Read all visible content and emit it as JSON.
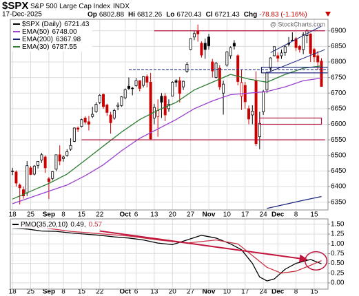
{
  "header": {
    "symbol": "$SPX",
    "name": "S&P 500 Large Cap Index",
    "exchange": "INDX",
    "date": "17-Dec-2025",
    "open_label": "Op",
    "open": "6802.88",
    "high_label": "Hi",
    "high": "6812.26",
    "low_label": "Lo",
    "low": "6720.43",
    "close_label": "Cl",
    "close": "6721.43",
    "change_label": "Chg",
    "change": "-78.83 (-1.16%)"
  },
  "watermark": "@ StockCharts.com",
  "chart_data": [
    {
      "type": "candlestick",
      "legend_label": "$SPX (Daily)",
      "legend_value": "6721.43",
      "up_color": "#000000",
      "down_color": "#cc0000",
      "xlim": [
        -0.6,
        86.8
      ],
      "ylim": [
        6325,
        6937
      ],
      "yticks": [
        6350,
        6400,
        6450,
        6500,
        6550,
        6600,
        6650,
        6700,
        6750,
        6800,
        6850,
        6900
      ],
      "xticks": [
        {
          "value": 0,
          "label": "18"
        },
        {
          "value": 5,
          "label": "25"
        },
        {
          "value": 10,
          "label": "Sep"
        },
        {
          "value": 14,
          "label": "8"
        },
        {
          "value": 19,
          "label": "15"
        },
        {
          "value": 24,
          "label": "22"
        },
        {
          "value": 31,
          "label": "Oct"
        },
        {
          "value": 34,
          "label": "6"
        },
        {
          "value": 39,
          "label": "13"
        },
        {
          "value": 44,
          "label": "20"
        },
        {
          "value": 49,
          "label": "27"
        },
        {
          "value": 54,
          "label": "Nov"
        },
        {
          "value": 59,
          "label": "10"
        },
        {
          "value": 64,
          "label": "17"
        },
        {
          "value": 69,
          "label": "24"
        },
        {
          "value": 73,
          "label": "Dec"
        },
        {
          "value": 78,
          "label": "8"
        },
        {
          "value": 83,
          "label": "15"
        }
      ],
      "grid": true,
      "ohlc": [
        [
          6450,
          6460,
          6437,
          6449
        ],
        [
          6447,
          6452,
          6400,
          6411
        ],
        [
          6405,
          6410,
          6343,
          6396
        ],
        [
          6390,
          6400,
          6361,
          6370
        ],
        [
          6380,
          6482,
          6370,
          6467
        ],
        [
          6460,
          6466,
          6437,
          6439
        ],
        [
          6440,
          6469,
          6436,
          6466
        ],
        [
          6468,
          6481,
          6458,
          6481
        ],
        [
          6485,
          6508,
          6476,
          6502
        ],
        [
          6495,
          6500,
          6444,
          6460
        ],
        [
          6425,
          6431,
          6360,
          6416
        ],
        [
          6426,
          6450,
          6420,
          6448
        ],
        [
          6456,
          6502,
          6450,
          6502
        ],
        [
          6502,
          6532,
          6468,
          6482
        ],
        [
          6490,
          6500,
          6480,
          6495
        ],
        [
          6500,
          6520,
          6496,
          6512
        ],
        [
          6520,
          6555,
          6515,
          6532
        ],
        [
          6545,
          6590,
          6543,
          6588
        ],
        [
          6588,
          6593,
          6575,
          6584
        ],
        [
          6593,
          6618,
          6590,
          6615
        ],
        [
          6620,
          6626,
          6600,
          6607
        ],
        [
          6608,
          6627,
          6580,
          6600
        ],
        [
          6625,
          6656,
          6620,
          6632
        ],
        [
          6640,
          6671,
          6637,
          6664
        ],
        [
          6670,
          6697,
          6665,
          6693
        ],
        [
          6696,
          6699,
          6650,
          6657
        ],
        [
          6662,
          6666,
          6627,
          6638
        ],
        [
          6630,
          6640,
          6570,
          6605
        ],
        [
          6620,
          6650,
          6615,
          6644
        ],
        [
          6658,
          6670,
          6645,
          6661
        ],
        [
          6660,
          6690,
          6656,
          6688
        ],
        [
          6685,
          6715,
          6680,
          6711
        ],
        [
          6722,
          6750,
          6710,
          6715
        ],
        [
          6715,
          6720,
          6693,
          6716
        ],
        [
          6724,
          6749,
          6720,
          6740
        ],
        [
          6740,
          6741,
          6706,
          6715
        ],
        [
          6725,
          6755,
          6718,
          6753
        ],
        [
          6753,
          6760,
          6719,
          6735
        ],
        [
          6735,
          6765,
          6550,
          6553
        ],
        [
          6620,
          6665,
          6600,
          6654
        ],
        [
          6625,
          6680,
          6560,
          6644
        ],
        [
          6690,
          6700,
          6620,
          6671
        ],
        [
          6690,
          6700,
          6610,
          6630
        ],
        [
          6650,
          6680,
          6640,
          6664
        ],
        [
          6690,
          6738,
          6690,
          6735
        ],
        [
          6740,
          6745,
          6720,
          6735
        ],
        [
          6740,
          6752,
          6670,
          6699
        ],
        [
          6720,
          6740,
          6710,
          6738
        ],
        [
          6770,
          6800,
          6765,
          6792
        ],
        [
          6840,
          6876,
          6838,
          6875
        ],
        [
          6880,
          6899,
          6870,
          6891
        ],
        [
          6900,
          6920,
          6865,
          6890
        ],
        [
          6860,
          6866,
          6814,
          6822
        ],
        [
          6860,
          6875,
          6810,
          6840
        ],
        [
          6880,
          6890,
          6840,
          6852
        ],
        [
          6800,
          6810,
          6750,
          6771
        ],
        [
          6750,
          6800,
          6747,
          6796
        ],
        [
          6780,
          6790,
          6710,
          6720
        ],
        [
          6700,
          6740,
          6631,
          6729
        ],
        [
          6790,
          6835,
          6785,
          6832
        ],
        [
          6820,
          6850,
          6810,
          6846
        ],
        [
          6860,
          6870,
          6840,
          6851
        ],
        [
          6820,
          6825,
          6725,
          6737
        ],
        [
          6690,
          6775,
          6646,
          6734
        ],
        [
          6725,
          6736,
          6650,
          6672
        ],
        [
          6650,
          6660,
          6600,
          6617
        ],
        [
          6630,
          6661,
          6600,
          6642
        ],
        [
          6740,
          6770,
          6530,
          6538
        ],
        [
          6560,
          6640,
          6520,
          6603
        ],
        [
          6640,
          6710,
          6630,
          6705
        ],
        [
          6710,
          6770,
          6700,
          6766
        ],
        [
          6780,
          6815,
          6770,
          6813
        ],
        [
          6820,
          6850,
          6818,
          6849
        ],
        [
          6820,
          6830,
          6800,
          6812
        ],
        [
          6820,
          6840,
          6810,
          6829
        ],
        [
          6830,
          6855,
          6820,
          6849
        ],
        [
          6860,
          6880,
          6850,
          6857
        ],
        [
          6870,
          6895,
          6868,
          6870
        ],
        [
          6875,
          6880,
          6835,
          6846
        ],
        [
          6850,
          6855,
          6830,
          6840
        ],
        [
          6840,
          6895,
          6825,
          6887
        ],
        [
          6885,
          6905,
          6860,
          6901
        ],
        [
          6890,
          6892,
          6800,
          6827
        ],
        [
          6840,
          6845,
          6800,
          6816
        ],
        [
          6820,
          6835,
          6775,
          6800
        ],
        [
          6802.88,
          6812.26,
          6720.43,
          6721.43
        ]
      ],
      "series": [
        {
          "name": "EMA(50)",
          "legend_value": "6748.00",
          "color": "#9a3fd0",
          "x": [
            0,
            5,
            10,
            15,
            20,
            25,
            30,
            35,
            40,
            45,
            50,
            55,
            60,
            65,
            70,
            75,
            80,
            85
          ],
          "values": [
            6345,
            6365,
            6385,
            6405,
            6435,
            6470,
            6515,
            6555,
            6585,
            6615,
            6650,
            6675,
            6695,
            6700,
            6705,
            6720,
            6740,
            6748
          ]
        },
        {
          "name": "EMA(200)",
          "legend_value": "6367.98",
          "color": "#1a237e",
          "x": [
            70,
            75,
            80,
            85
          ],
          "values": [
            6330,
            6343,
            6356,
            6367.98
          ]
        },
        {
          "name": "EMA(30)",
          "legend_value": "6787.55",
          "color": "#2e7d32",
          "x": [
            0,
            5,
            10,
            15,
            20,
            25,
            30,
            35,
            40,
            45,
            50,
            55,
            60,
            65,
            70,
            75,
            80,
            85
          ],
          "values": [
            6360,
            6385,
            6410,
            6440,
            6485,
            6530,
            6575,
            6615,
            6645,
            6670,
            6710,
            6735,
            6760,
            6745,
            6735,
            6760,
            6780,
            6787.55
          ]
        }
      ],
      "annotations": [
        {
          "kind": "hline",
          "y": 6900,
          "x": [
            39,
            86
          ],
          "color": "#b0103a",
          "dashed": false
        },
        {
          "kind": "hline",
          "y": 6775,
          "x": [
            32,
            86.8
          ],
          "color": "#1a237e",
          "dashed": true
        },
        {
          "kind": "hline",
          "y": 6550,
          "x": [
            19,
            86
          ],
          "color": "#b0103a",
          "dashed": false
        },
        {
          "kind": "box",
          "y": [
            6600,
            6620
          ],
          "x": [
            68,
            85
          ],
          "color": "#b0103a"
        },
        {
          "kind": "box",
          "y": [
            6765,
            6783
          ],
          "x": [
            68.5,
            86.8
          ],
          "color": "#1a237e"
        },
        {
          "kind": "segment",
          "x": [
            71,
            85
          ],
          "y": [
            6830,
            6915
          ],
          "color": "#1a237e"
        },
        {
          "kind": "segment",
          "x": [
            70,
            86
          ],
          "y": [
            6765,
            6840
          ],
          "color": "#1a237e"
        }
      ]
    },
    {
      "type": "line",
      "title": "PMO(35,20,10)",
      "xlim": [
        -0.6,
        86.8
      ],
      "ylim": [
        -0.16,
        1.64
      ],
      "yticks": [
        {
          "value": 0,
          "label": "0.00"
        },
        {
          "value": 0.25,
          "label": "0.25"
        },
        {
          "value": 0.5,
          "label": "0.50"
        },
        {
          "value": 0.75,
          "label": "0.75"
        },
        {
          "value": 1,
          "label": "1.00"
        },
        {
          "value": 1.25,
          "label": "1.25"
        },
        {
          "value": 1.5,
          "label": "1.50"
        }
      ],
      "xticks": [
        {
          "value": 0,
          "label": "18"
        },
        {
          "value": 5,
          "label": "25"
        },
        {
          "value": 10,
          "label": "Sep"
        },
        {
          "value": 14,
          "label": "8"
        },
        {
          "value": 19,
          "label": "15"
        },
        {
          "value": 24,
          "label": "22"
        },
        {
          "value": 31,
          "label": "Oct"
        },
        {
          "value": 34,
          "label": "6"
        },
        {
          "value": 39,
          "label": "13"
        },
        {
          "value": 44,
          "label": "20"
        },
        {
          "value": 49,
          "label": "27"
        },
        {
          "value": 54,
          "label": "Nov"
        },
        {
          "value": 59,
          "label": "10"
        },
        {
          "value": 64,
          "label": "17"
        },
        {
          "value": 69,
          "label": "24"
        },
        {
          "value": 73,
          "label": "Dec"
        },
        {
          "value": 78,
          "label": "8"
        },
        {
          "value": 83,
          "label": "15"
        }
      ],
      "grid": true,
      "series": [
        {
          "name": "PMO(35,20,10)",
          "legend_value": "0.49,",
          "color": "#000000",
          "x": [
            0,
            4,
            8,
            12,
            16,
            20,
            24,
            28,
            32,
            36,
            40,
            44,
            48,
            52,
            56,
            60,
            63,
            66,
            68,
            70,
            72,
            75,
            78,
            82,
            85
          ],
          "values": [
            1.4,
            1.38,
            1.33,
            1.32,
            1.28,
            1.25,
            1.22,
            1.18,
            1.15,
            1.1,
            1.02,
            0.98,
            1.1,
            1.22,
            1.15,
            1.0,
            0.85,
            0.5,
            0.15,
            0.05,
            0.1,
            0.35,
            0.5,
            0.6,
            0.49
          ]
        },
        {
          "legend_value": "0.57",
          "color": "#cc3344",
          "x": [
            0,
            8,
            16,
            24,
            32,
            40,
            48,
            56,
            62,
            66,
            70,
            74,
            78,
            82,
            85
          ],
          "values": [
            1.47,
            1.42,
            1.32,
            1.26,
            1.2,
            1.1,
            1.02,
            1.1,
            1.0,
            0.7,
            0.4,
            0.25,
            0.3,
            0.45,
            0.57
          ]
        }
      ],
      "annotations": [
        {
          "kind": "arrow",
          "x": [
            24,
            81
          ],
          "y": [
            1.33,
            0.6
          ],
          "color": "#c0143c"
        },
        {
          "kind": "ellipse",
          "x": [
            80.5,
            86.5
          ],
          "y": [
            0.33,
            0.8
          ],
          "color": "#c0143c"
        }
      ]
    }
  ]
}
